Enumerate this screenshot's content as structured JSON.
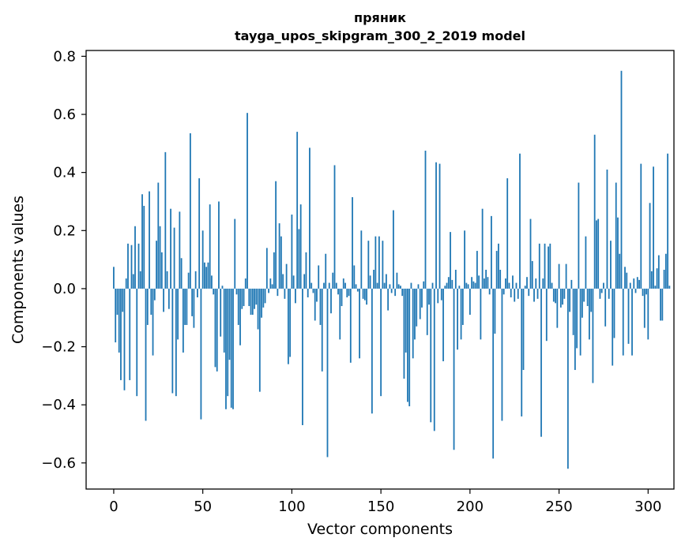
{
  "chart_data": {
    "type": "bar",
    "title": "пряник",
    "subtitle": "tayga_upos_skipgram_300_2_2019 model",
    "xlabel": "Vector components",
    "ylabel": "Components values",
    "xlim": [
      -15.5,
      314.5
    ],
    "ylim": [
      -0.69,
      0.82
    ],
    "xticks": [
      0,
      50,
      100,
      150,
      200,
      250,
      300
    ],
    "xtick_labels": [
      "0",
      "50",
      "100",
      "150",
      "200",
      "250",
      "300"
    ],
    "yticks": [
      -0.6,
      -0.4,
      -0.2,
      0.0,
      0.2,
      0.4,
      0.6,
      0.8
    ],
    "ytick_labels": [
      "−0.6",
      "−0.4",
      "−0.2",
      "0.0",
      "0.2",
      "0.4",
      "0.6",
      "0.8"
    ],
    "bar_color": "#1f77b4",
    "values": [
      0.075,
      -0.185,
      -0.09,
      -0.22,
      -0.315,
      -0.08,
      -0.35,
      0.035,
      0.155,
      -0.315,
      0.15,
      0.05,
      0.215,
      -0.37,
      0.155,
      0.06,
      0.325,
      0.285,
      -0.455,
      -0.125,
      0.335,
      -0.09,
      -0.23,
      -0.04,
      0.165,
      0.365,
      0.215,
      0.125,
      -0.08,
      0.47,
      0.06,
      -0.07,
      0.275,
      -0.36,
      0.21,
      -0.37,
      -0.175,
      0.265,
      0.105,
      -0.22,
      -0.125,
      -0.125,
      0.055,
      0.535,
      -0.095,
      -0.135,
      0.06,
      -0.03,
      0.38,
      -0.45,
      0.2,
      0.09,
      0.075,
      0.09,
      0.29,
      0.045,
      -0.02,
      -0.27,
      -0.285,
      0.3,
      -0.165,
      0.01,
      -0.22,
      -0.415,
      -0.37,
      -0.245,
      -0.41,
      -0.415,
      0.24,
      -0.02,
      -0.125,
      -0.195,
      -0.07,
      -0.06,
      0.035,
      0.605,
      -0.06,
      -0.09,
      -0.09,
      -0.07,
      -0.055,
      -0.14,
      -0.355,
      -0.1,
      -0.065,
      -0.05,
      0.14,
      -0.015,
      0.035,
      0.015,
      0.125,
      0.37,
      -0.025,
      0.225,
      0.18,
      0.05,
      -0.035,
      0.085,
      -0.26,
      -0.235,
      0.255,
      0.045,
      -0.05,
      0.54,
      0.205,
      0.29,
      -0.47,
      0.05,
      0.125,
      -0.03,
      0.485,
      0.02,
      -0.015,
      -0.11,
      -0.045,
      0.08,
      -0.125,
      -0.285,
      0.02,
      0.12,
      -0.58,
      0.02,
      -0.085,
      0.055,
      0.425,
      0.02,
      -0.02,
      -0.175,
      -0.06,
      0.035,
      0.02,
      -0.03,
      -0.025,
      -0.255,
      0.315,
      0.08,
      0.015,
      -0.01,
      -0.24,
      0.2,
      -0.035,
      -0.04,
      -0.055,
      0.165,
      0.045,
      -0.43,
      0.065,
      0.18,
      0.02,
      0.18,
      -0.37,
      0.165,
      0.02,
      0.05,
      -0.075,
      0.015,
      -0.015,
      0.27,
      -0.025,
      0.055,
      0.015,
      0.01,
      -0.025,
      -0.31,
      -0.22,
      -0.39,
      -0.405,
      0.02,
      -0.24,
      -0.175,
      -0.13,
      0.015,
      -0.105,
      -0.065,
      0.025,
      0.475,
      -0.16,
      -0.055,
      -0.46,
      0.02,
      -0.49,
      0.435,
      -0.05,
      0.43,
      -0.04,
      -0.25,
      0.01,
      0.02,
      0.04,
      0.195,
      0.03,
      -0.555,
      0.065,
      -0.21,
      0.01,
      -0.175,
      -0.125,
      0.2,
      0.02,
      0.015,
      -0.09,
      0.04,
      0.025,
      0.02,
      0.13,
      0.045,
      -0.175,
      0.275,
      0.035,
      0.065,
      0.04,
      -0.02,
      0.25,
      -0.585,
      -0.155,
      0.13,
      0.155,
      0.065,
      -0.455,
      -0.02,
      0.035,
      0.38,
      0.02,
      -0.03,
      0.045,
      -0.045,
      0.02,
      -0.035,
      0.465,
      -0.44,
      -0.28,
      0.01,
      0.04,
      -0.025,
      0.24,
      0.095,
      -0.045,
      0.035,
      -0.035,
      0.155,
      -0.51,
      0.035,
      0.155,
      -0.18,
      0.145,
      0.155,
      0.02,
      -0.045,
      -0.05,
      -0.135,
      0.085,
      -0.065,
      -0.055,
      -0.035,
      0.085,
      -0.62,
      -0.08,
      0.03,
      -0.16,
      -0.28,
      -0.205,
      0.365,
      -0.23,
      -0.1,
      -0.045,
      0.18,
      -0.06,
      -0.175,
      -0.08,
      -0.325,
      0.53,
      0.235,
      0.24,
      -0.035,
      -0.015,
      0.02,
      -0.13,
      0.41,
      -0.035,
      0.165,
      -0.265,
      -0.17,
      0.365,
      0.245,
      0.12,
      0.75,
      -0.23,
      0.075,
      0.055,
      -0.19,
      0.02,
      -0.23,
      0.035,
      -0.015,
      0.04,
      0.03,
      0.43,
      -0.025,
      -0.135,
      -0.02,
      -0.175,
      0.295,
      0.06,
      0.42,
      0.01,
      0.07,
      0.115,
      -0.11,
      -0.11,
      0.065,
      0.12,
      0.465,
      0.01
    ]
  }
}
